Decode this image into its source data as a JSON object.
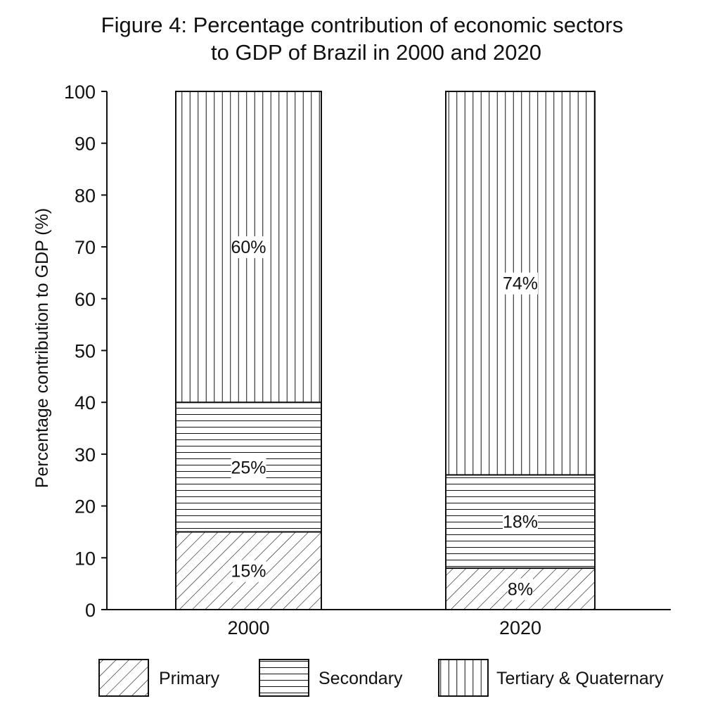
{
  "chart_data": {
    "type": "bar",
    "stacked": true,
    "title": "Figure 4: Percentage contribution of economic sectors to GDP of Brazil in 2000 and 2020",
    "title_lines": [
      "Figure 4: Percentage contribution of economic sectors",
      "to GDP of Brazil in 2000 and 2020"
    ],
    "xlabel": "",
    "ylabel": "Percentage contribution to GDP (%)",
    "ylim": [
      0,
      100
    ],
    "yticks": [
      0,
      10,
      20,
      30,
      40,
      50,
      60,
      70,
      80,
      90,
      100
    ],
    "categories": [
      "2000",
      "2020"
    ],
    "series": [
      {
        "name": "Primary",
        "values": [
          15,
          8
        ],
        "labels": [
          "15%",
          "8%"
        ],
        "pattern": "diagonal-hatch"
      },
      {
        "name": "Secondary",
        "values": [
          25,
          18
        ],
        "labels": [
          "25%",
          "18%"
        ],
        "pattern": "horizontal-lines"
      },
      {
        "name": "Tertiary & Quaternary",
        "values": [
          60,
          74
        ],
        "labels": [
          "60%",
          "74%"
        ],
        "pattern": "vertical-lines"
      }
    ],
    "legend_position": "bottom",
    "grid": false,
    "colors": {
      "ink": "#111111",
      "fill": "#ffffff"
    }
  }
}
